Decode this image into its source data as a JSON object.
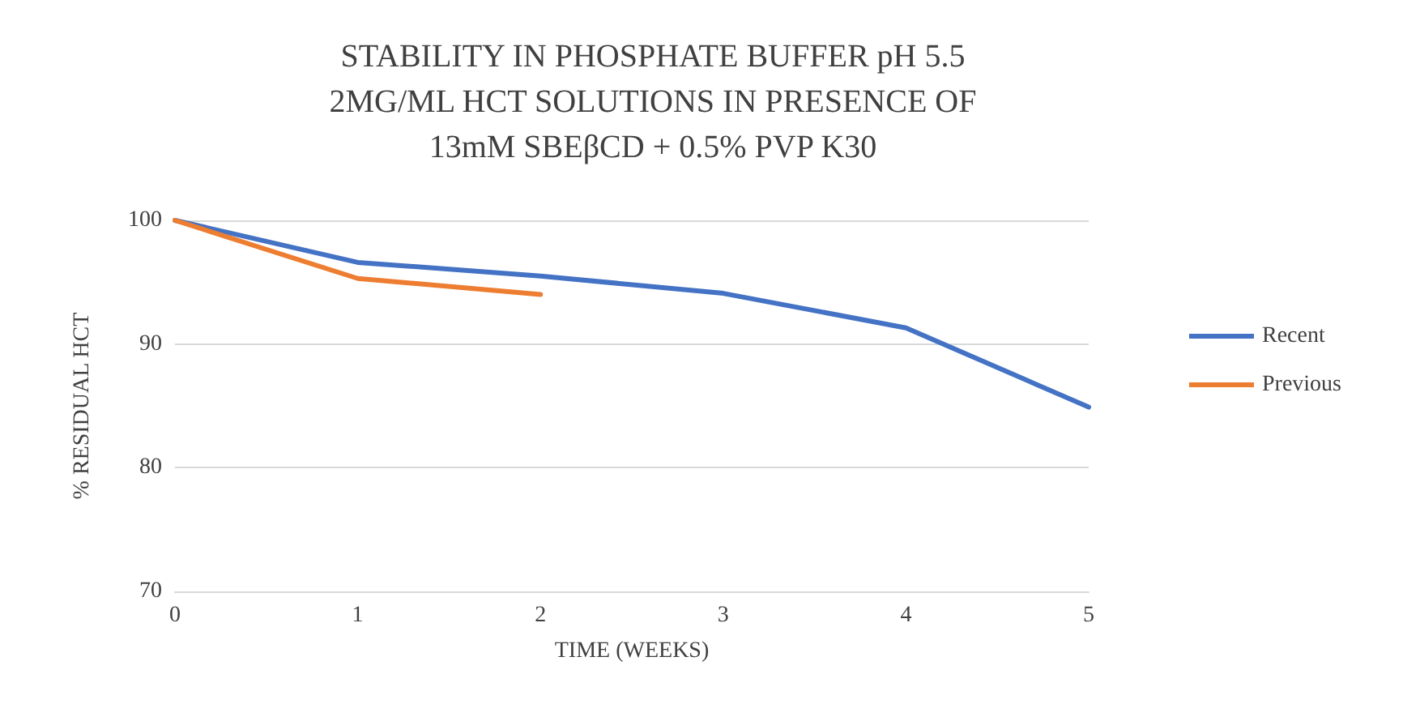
{
  "chart_data": {
    "type": "line",
    "title": "STABILITY IN PHOSPHATE BUFFER pH 5.5\n2MG/ML HCT SOLUTIONS IN PRESENCE OF\n13mM SBEβCD + 0.5% PVP K30",
    "xlabel": "TIME (WEEKS)",
    "ylabel": "% RESIDUAL HCT",
    "x": [
      0,
      1,
      2,
      3,
      4,
      5
    ],
    "series": [
      {
        "name": "Recent",
        "color": "#4472c4",
        "values": [
          100,
          96.6,
          95.5,
          94.1,
          91.3,
          84.9
        ]
      },
      {
        "name": "Previous",
        "color": "#ed7d31",
        "values": [
          100,
          95.3,
          94.0,
          null,
          null,
          null
        ]
      }
    ],
    "xlim": [
      0,
      5
    ],
    "xticks": [
      0,
      1,
      2,
      3,
      4,
      5
    ],
    "ylim": [
      70,
      100
    ],
    "yticks": [
      70,
      80,
      90,
      100
    ],
    "grid": "y",
    "legend": "right",
    "marker": "none",
    "line_style": "solid"
  }
}
